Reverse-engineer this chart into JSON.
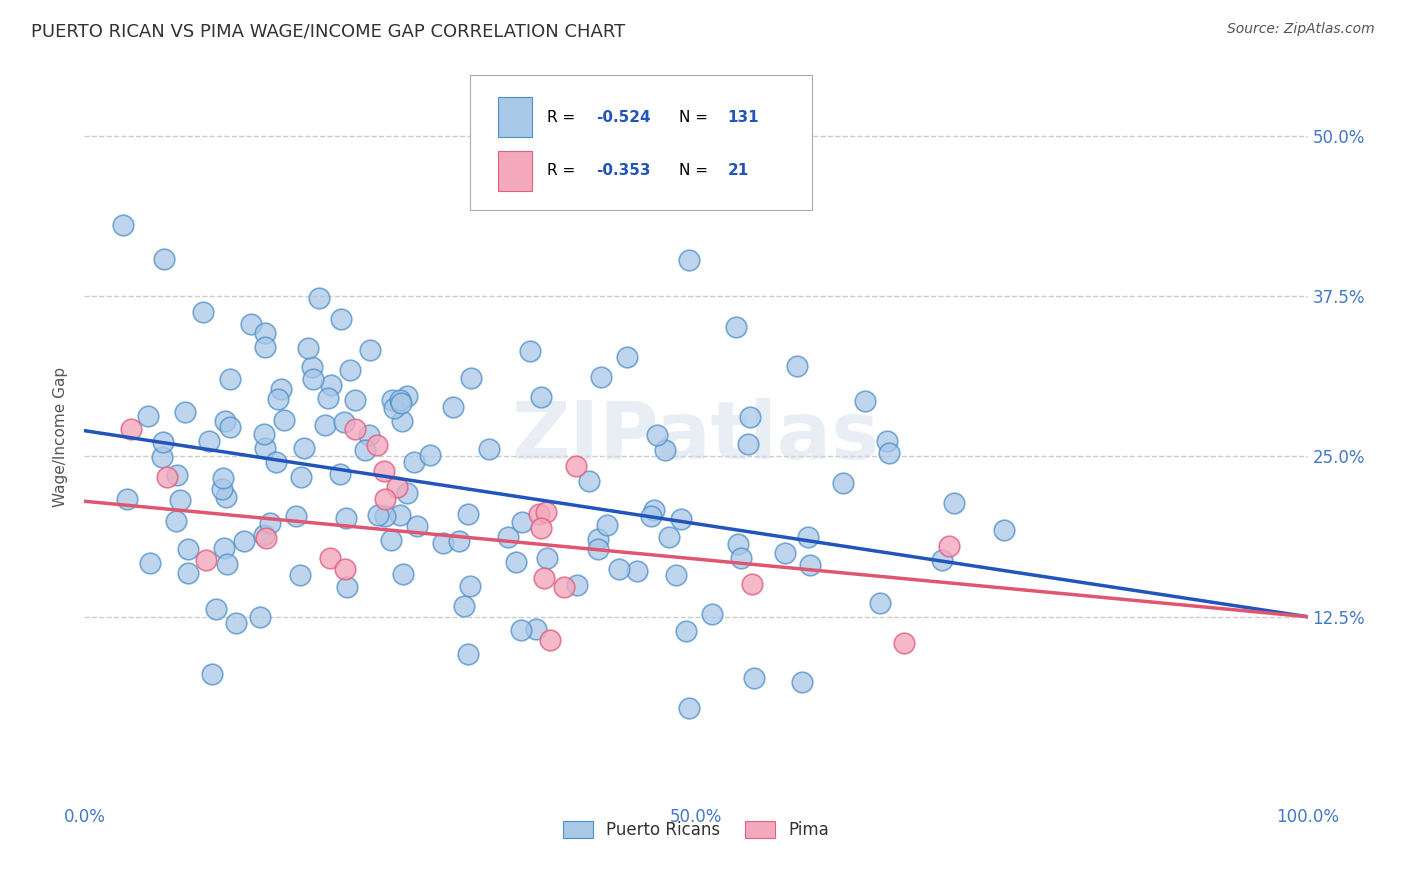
{
  "title": "PUERTO RICAN VS PIMA WAGE/INCOME GAP CORRELATION CHART",
  "title_color": "#3c6dbf",
  "source_text": "Source: ZipAtlas.com",
  "ylabel": "Wage/Income Gap",
  "xlim": [
    0.0,
    1.0
  ],
  "ylim": [
    -0.02,
    0.55
  ],
  "x_ticks": [
    0.0,
    0.25,
    0.5,
    0.75,
    1.0
  ],
  "x_tick_labels": [
    "0.0%",
    "",
    "50.0%",
    "",
    "100.0%"
  ],
  "y_ticks": [
    0.125,
    0.25,
    0.375,
    0.5
  ],
  "y_tick_labels": [
    "12.5%",
    "25.0%",
    "37.5%",
    "50.0%"
  ],
  "blue_color": "#a8c8e8",
  "pink_color": "#f4a8bc",
  "blue_edge_color": "#5090c8",
  "pink_edge_color": "#e06080",
  "blue_line_color": "#2255bb",
  "pink_line_color": "#e05570",
  "corr_color": "#2255bb",
  "watermark_text": "ZIPatlas",
  "background_color": "#ffffff",
  "grid_color": "#cccccc",
  "tick_label_color": "#4477cc",
  "blue_intercept": 0.27,
  "blue_slope": -0.145,
  "pink_intercept": 0.215,
  "pink_slope": -0.09,
  "seed": 99
}
